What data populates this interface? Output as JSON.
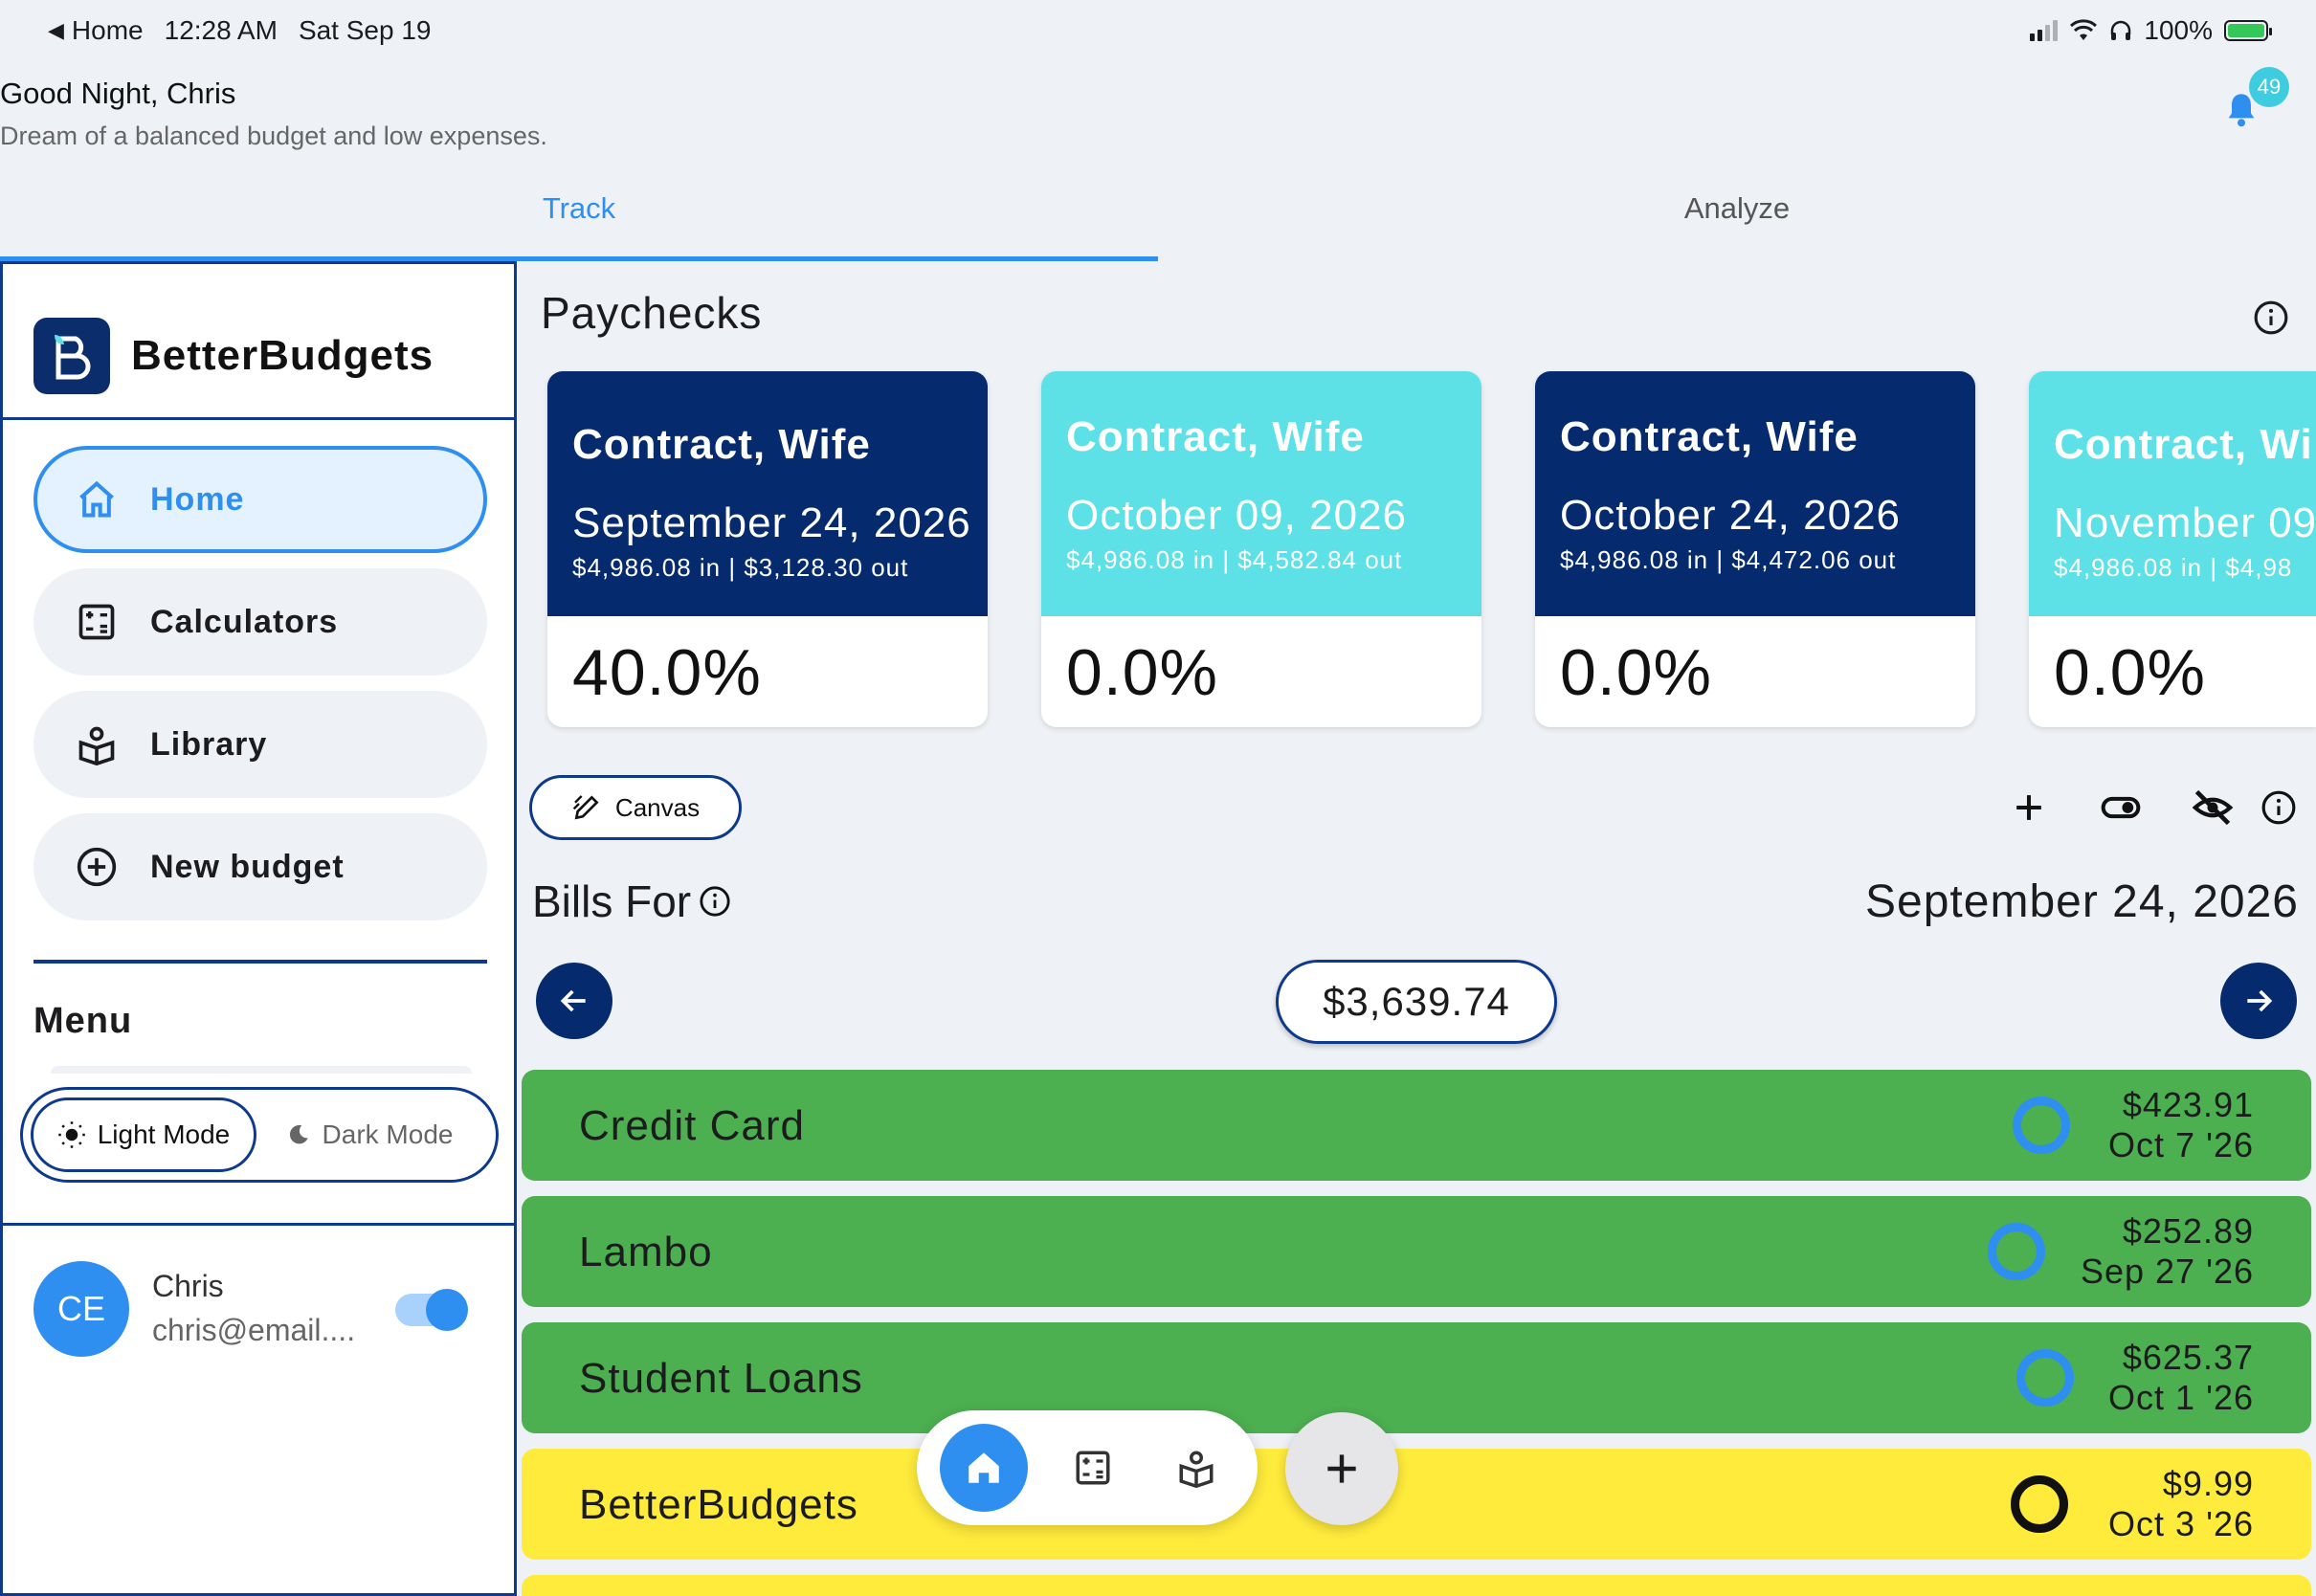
{
  "status_bar": {
    "back_label": "Home",
    "time": "12:28 AM",
    "date": "Sat Sep 19",
    "battery": "100%"
  },
  "header": {
    "greeting": "Good Night, Chris",
    "subtitle": "Dream of a balanced budget and low expenses.",
    "notification_count": "49"
  },
  "tabs": [
    {
      "label": "Track",
      "active": true
    },
    {
      "label": "Analyze",
      "active": false
    }
  ],
  "sidebar": {
    "brand": "BetterBudgets",
    "nav": [
      {
        "label": "Home",
        "icon": "home-icon",
        "active": true
      },
      {
        "label": "Calculators",
        "icon": "calculator-icon",
        "active": false
      },
      {
        "label": "Library",
        "icon": "library-icon",
        "active": false
      },
      {
        "label": "New budget",
        "icon": "plus-circle-icon",
        "active": false
      }
    ],
    "menu_label": "Menu",
    "light_mode": "Light Mode",
    "dark_mode": "Dark Mode",
    "user": {
      "initials": "CE",
      "name": "Chris",
      "email": "chris@email...."
    },
    "toggle_on": true
  },
  "paychecks": {
    "title": "Paychecks",
    "cards": [
      {
        "name": "Contract, Wife",
        "date": "September 24, 2026",
        "flow": "$4,986.08 in | $3,128.30 out",
        "percent": "40.0%",
        "theme": "dark"
      },
      {
        "name": "Contract, Wife",
        "date": "October 09, 2026",
        "flow": "$4,986.08 in | $4,582.84 out",
        "percent": "0.0%",
        "theme": "teal"
      },
      {
        "name": "Contract, Wife",
        "date": "October 24, 2026",
        "flow": "$4,986.08 in | $4,472.06 out",
        "percent": "0.0%",
        "theme": "dark"
      },
      {
        "name": "Contract, Wi",
        "date": "November 09,",
        "flow": "$4,986.08 in | $4,98",
        "percent": "0.0%",
        "theme": "teal"
      }
    ]
  },
  "toolbar": {
    "canvas_label": "Canvas"
  },
  "bills": {
    "title": "Bills For",
    "date": "September 24, 2026",
    "total": "$3,639.74",
    "items": [
      {
        "name": "Credit Card",
        "amount": "$423.91",
        "due": "Oct 7 '26",
        "color": "#4caf50",
        "ring": "#2f8ff0"
      },
      {
        "name": "Lambo",
        "amount": "$252.89",
        "due": "Sep 27 '26",
        "color": "#4caf50",
        "ring": "#2f8ff0"
      },
      {
        "name": "Student Loans",
        "amount": "$625.37",
        "due": "Oct 1 '26",
        "color": "#4caf50",
        "ring": "#2f8ff0"
      },
      {
        "name": "BetterBudgets",
        "amount": "$9.99",
        "due": "Oct 3 '26",
        "color": "#ffeb3b",
        "ring": "#111111"
      }
    ]
  },
  "colors": {
    "accent": "#2f8ff0",
    "navy": "#052b6e",
    "teal": "#5de1e6",
    "bill_green": "#4caf50",
    "bill_yellow": "#ffeb3b"
  }
}
